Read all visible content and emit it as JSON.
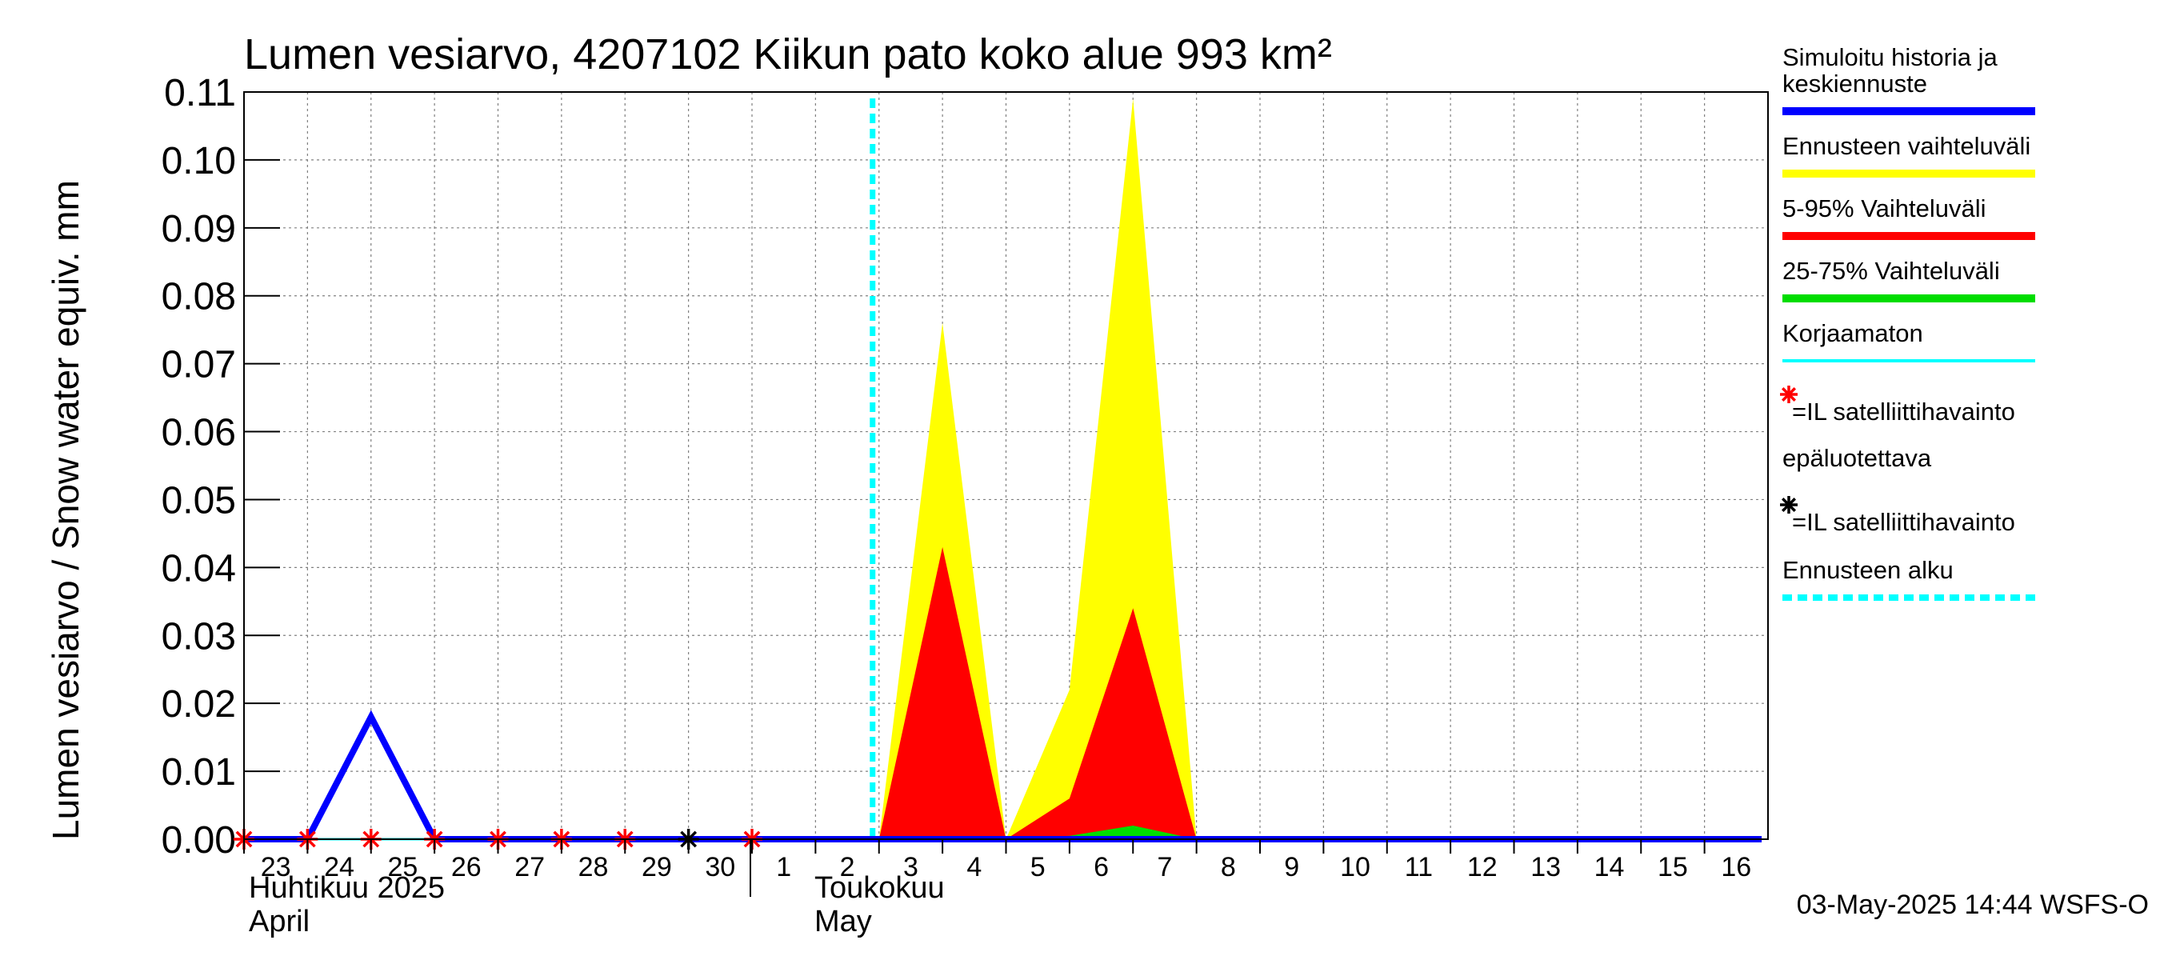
{
  "chart_data": {
    "type": "area",
    "title": "Lumen vesiarvo, 4207102 Kiikun pato koko alue 993 km²",
    "ylabel": "Lumen vesiarvo / Snow water equiv.    mm",
    "ylim": [
      0,
      0.11
    ],
    "yticks": [
      "0.00",
      "0.01",
      "0.02",
      "0.03",
      "0.04",
      "0.05",
      "0.06",
      "0.07",
      "0.08",
      "0.09",
      "0.10",
      "0.11"
    ],
    "x_days": [
      "23",
      "24",
      "25",
      "26",
      "27",
      "28",
      "29",
      "30",
      "1",
      "2",
      "3",
      "4",
      "5",
      "6",
      "7",
      "8",
      "9",
      "10",
      "11",
      "12",
      "13",
      "14",
      "15",
      "16"
    ],
    "month_labels": [
      {
        "fi": "Huhtikuu  2025",
        "en": "April",
        "start_index": 0
      },
      {
        "fi": "Toukokuu",
        "en": "May",
        "start_index": 8
      }
    ],
    "grid": true,
    "forecast_start_index": 10,
    "series": [
      {
        "name": "Ennusteen vaihteluväli",
        "color": "#ffff00",
        "kind": "band",
        "x": [
          10,
          11,
          12,
          13,
          14,
          15
        ],
        "low": [
          0,
          0,
          0,
          0,
          0,
          0
        ],
        "high": [
          0,
          0.076,
          0,
          0.022,
          0.109,
          0
        ]
      },
      {
        "name": "5-95% Vaihteluväli",
        "color": "#ff0000",
        "kind": "band",
        "x": [
          10,
          11,
          12,
          13,
          14,
          15
        ],
        "low": [
          0,
          0,
          0,
          0,
          0,
          0
        ],
        "high": [
          0,
          0.043,
          0,
          0.006,
          0.034,
          0
        ]
      },
      {
        "name": "25-75% Vaihteluväli",
        "color": "#00dd00",
        "kind": "band",
        "x": [
          12,
          13,
          14,
          15
        ],
        "low": [
          0,
          0,
          0,
          0
        ],
        "high": [
          0,
          0.0005,
          0.002,
          0
        ]
      },
      {
        "name": "Korjaamaton",
        "color": "#00ffff",
        "kind": "line",
        "x": [
          0,
          7
        ],
        "y": [
          0,
          0
        ]
      },
      {
        "name": "Simuloitu historia ja keskiennuste",
        "color": "#0000ff",
        "kind": "line",
        "x": [
          0,
          1,
          2,
          3,
          4,
          5,
          6,
          7,
          8,
          9,
          10,
          11,
          12,
          13,
          14,
          15,
          16,
          17,
          18,
          19,
          20,
          21,
          22,
          23,
          23.9
        ],
        "y": [
          0,
          0,
          0.018,
          0,
          0,
          0,
          0,
          0,
          0,
          0,
          0,
          0,
          0,
          0,
          0,
          0,
          0,
          0,
          0,
          0,
          0,
          0,
          0,
          0,
          0
        ]
      }
    ],
    "markers": [
      {
        "name": "=IL satelliittihavainto",
        "color": "#ff0000",
        "x": [
          0,
          1,
          2,
          3,
          4,
          5,
          6,
          8
        ],
        "y": [
          0,
          0,
          0,
          0,
          0,
          0,
          0,
          0
        ]
      },
      {
        "name": "=IL satelliittihavainto",
        "color": "#000000",
        "x": [
          7
        ],
        "y": [
          0
        ]
      }
    ],
    "legend_placement": "right",
    "legend": [
      {
        "type": "line",
        "color": "#0000ff",
        "lines": [
          "Simuloitu historia ja",
          "keskiennuste"
        ]
      },
      {
        "type": "line",
        "color": "#ffff00",
        "lines": [
          "Ennusteen vaihteluväli"
        ]
      },
      {
        "type": "line",
        "color": "#ff0000",
        "lines": [
          "5-95% Vaihteluväli"
        ]
      },
      {
        "type": "line",
        "color": "#00dd00",
        "lines": [
          "25-75% Vaihteluväli"
        ]
      },
      {
        "type": "thin",
        "color": "#00ffff",
        "lines": [
          "Korjaamaton"
        ]
      },
      {
        "type": "star",
        "color": "#ff0000",
        "lines": [
          "=IL satelliittihavainto",
          "epäluotettava"
        ]
      },
      {
        "type": "star",
        "color": "#000000",
        "lines": [
          "=IL satelliittihavainto"
        ]
      },
      {
        "type": "dash",
        "color": "#00ffff",
        "lines": [
          "Ennusteen alku"
        ]
      }
    ],
    "footer": "03-May-2025 14:44 WSFS-O"
  }
}
